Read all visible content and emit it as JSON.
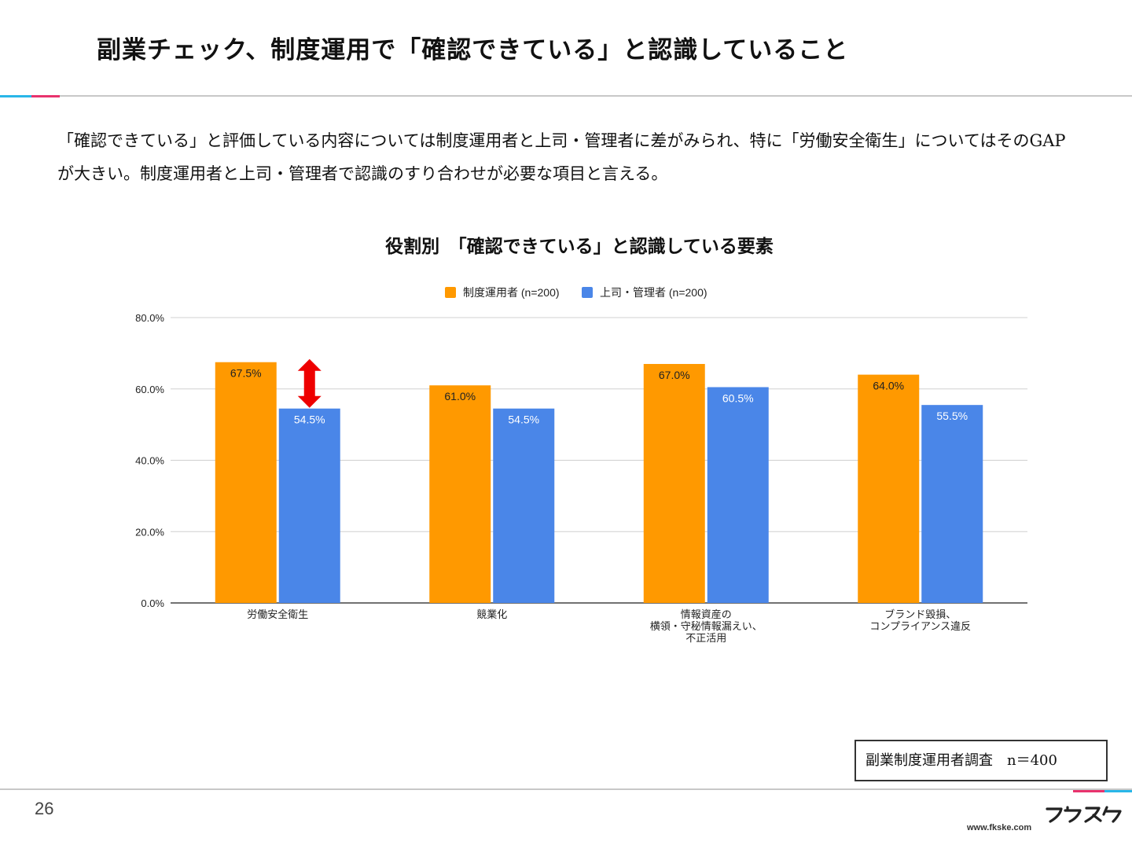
{
  "slide": {
    "title": "副業チェック、制度運用で「確認できている」と認識していること",
    "description": "「確認できている」と評価している内容については制度運用者と上司・管理者に差がみられ、特に「労働安全衛生」についてはそのGAPが大きい。制度運用者と上司・管理者で認識のすり合わせが必要な項目と言える。",
    "source_note": "副業制度運用者調査　n＝400",
    "page_number": "26",
    "brand_url": "www.fkske.com"
  },
  "chart_data": {
    "type": "bar",
    "title": "役割別　「確認できている」と認識している要素",
    "categories": [
      [
        "労働安全衛生"
      ],
      [
        "競業化"
      ],
      [
        "情報資産の",
        "横領・守秘情報漏えい、",
        "不正活用"
      ],
      [
        "ブランド毀損、",
        "コンプライアンス違反"
      ]
    ],
    "series": [
      {
        "name": "制度運用者 (n=200)",
        "color": "#ff9900",
        "label_color": "#222222",
        "values": [
          67.5,
          61.0,
          67.0,
          64.0
        ]
      },
      {
        "name": "上司・管理者 (n=200)",
        "color": "#4a86e8",
        "label_color": "#ffffff",
        "values": [
          54.5,
          54.5,
          60.5,
          55.5
        ]
      }
    ],
    "ylim": [
      0,
      80
    ],
    "yticks": [
      0,
      20,
      40,
      60,
      80
    ],
    "ytick_labels": [
      "0.0%",
      "20.0%",
      "40.0%",
      "60.0%",
      "80.0%"
    ],
    "grid": true,
    "legend": "top-center",
    "annotation": {
      "type": "double-arrow",
      "category_index": 0,
      "color": "#ee0000"
    }
  },
  "colors": {
    "accent_pink": "#e8336d",
    "accent_cyan": "#29b6e8",
    "rule_gray": "#c8c8c8"
  }
}
